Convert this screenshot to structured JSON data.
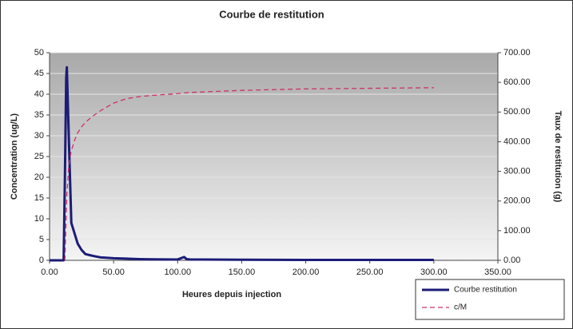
{
  "chart_data": {
    "type": "line",
    "title": "Courbe de restitution",
    "x_label": "Heures depuis injection",
    "y_label": "Concentration (ug/L)",
    "y2_label": "Taux de restitution (g)",
    "x": [
      0,
      10,
      11,
      12,
      13,
      13.5,
      15,
      17,
      20,
      22,
      25,
      28,
      32,
      35,
      40,
      50,
      60,
      70,
      80,
      100,
      105,
      107,
      110,
      150,
      200,
      250,
      300
    ],
    "series": [
      {
        "name": "Courbe restitution",
        "color": "#1c1c78",
        "dash": false,
        "values": [
          0,
          0,
          0,
          20,
          44,
          46.5,
          30,
          9,
          6,
          4,
          2.5,
          1.5,
          1.2,
          1,
          0.7,
          0.5,
          0.4,
          0.3,
          0.25,
          0.2,
          0.8,
          0.3,
          0.2,
          0.15,
          0.1,
          0.1,
          0.1
        ]
      },
      {
        "name": "c/M",
        "color": "#cc3366",
        "dash": true,
        "axis": "y2",
        "values": [
          null,
          null,
          null,
          0,
          150,
          220,
          320,
          370,
          410,
          430,
          450,
          465,
          480,
          490,
          505,
          530,
          545,
          552,
          556,
          562,
          564,
          565,
          566,
          573,
          578,
          580,
          582
        ]
      }
    ],
    "xlim": [
      0,
      350
    ],
    "xticks": [
      {
        "value": 0,
        "label": "0.00"
      },
      {
        "value": 50,
        "label": "50.00"
      },
      {
        "value": 100,
        "label": "100.00"
      },
      {
        "value": 150,
        "label": "150.00"
      },
      {
        "value": 200,
        "label": "200.00"
      },
      {
        "value": 250,
        "label": "250.00"
      },
      {
        "value": 300,
        "label": "300.00"
      },
      {
        "value": 350,
        "label": "350.00"
      }
    ],
    "ylim": [
      0,
      50
    ],
    "yticks": [
      0,
      5,
      10,
      15,
      20,
      25,
      30,
      35,
      40,
      45,
      50
    ],
    "y2lim": [
      0,
      700
    ],
    "y2ticks": [
      {
        "value": 0,
        "label": "0.00"
      },
      {
        "value": 100,
        "label": "100.00"
      },
      {
        "value": 200,
        "label": "200.00"
      },
      {
        "value": 300,
        "label": "300.00"
      },
      {
        "value": 400,
        "label": "400.00"
      },
      {
        "value": 500,
        "label": "500.00"
      },
      {
        "value": 600,
        "label": "600.00"
      },
      {
        "value": 700,
        "label": "700.00"
      }
    ],
    "grid": true,
    "legend": "bottom-right"
  }
}
